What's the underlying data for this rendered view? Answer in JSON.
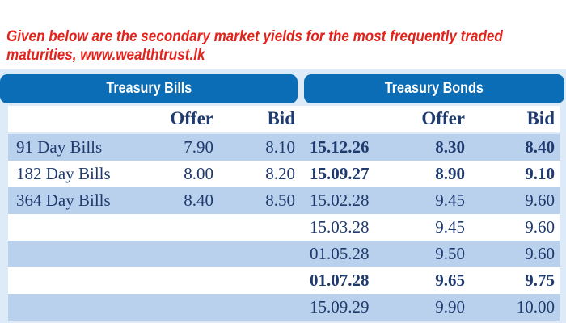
{
  "intro_text": "Given below are the secondary market yields for the most frequently traded maturities, www.wealthtrust.lk",
  "bills": {
    "title": "Treasury Bills",
    "columns": [
      "Offer",
      "Bid"
    ],
    "rows": [
      {
        "name": "91 Day Bills",
        "offer": "7.90",
        "bid": "8.10"
      },
      {
        "name": "182 Day Bills",
        "offer": "8.00",
        "bid": "8.20"
      },
      {
        "name": "364 Day Bills",
        "offer": "8.40",
        "bid": "8.50"
      }
    ]
  },
  "bonds": {
    "title": "Treasury Bonds",
    "columns": [
      "Offer",
      "Bid"
    ],
    "rows": [
      {
        "maturity": "15.12.26",
        "offer": "8.30",
        "bid": "8.40",
        "bold": true
      },
      {
        "maturity": "15.09.27",
        "offer": "8.90",
        "bid": "9.10",
        "bold": true
      },
      {
        "maturity": "15.02.28",
        "offer": "9.45",
        "bid": "9.60",
        "bold": false
      },
      {
        "maturity": "15.03.28",
        "offer": "9.45",
        "bid": "9.60",
        "bold": false
      },
      {
        "maturity": "01.05.28",
        "offer": "9.50",
        "bid": "9.60",
        "bold": false
      },
      {
        "maturity": "01.07.28",
        "offer": "9.65",
        "bid": "9.75",
        "bold": true
      },
      {
        "maturity": "15.09.29",
        "offer": "9.90",
        "bid": "10.00",
        "bold": false
      }
    ]
  },
  "colors": {
    "header": "#0a6db5",
    "alt_row": "#b9d1ec",
    "frame": "#dcebf7",
    "text": "#1f3a6e",
    "intro": "#e3221c"
  }
}
